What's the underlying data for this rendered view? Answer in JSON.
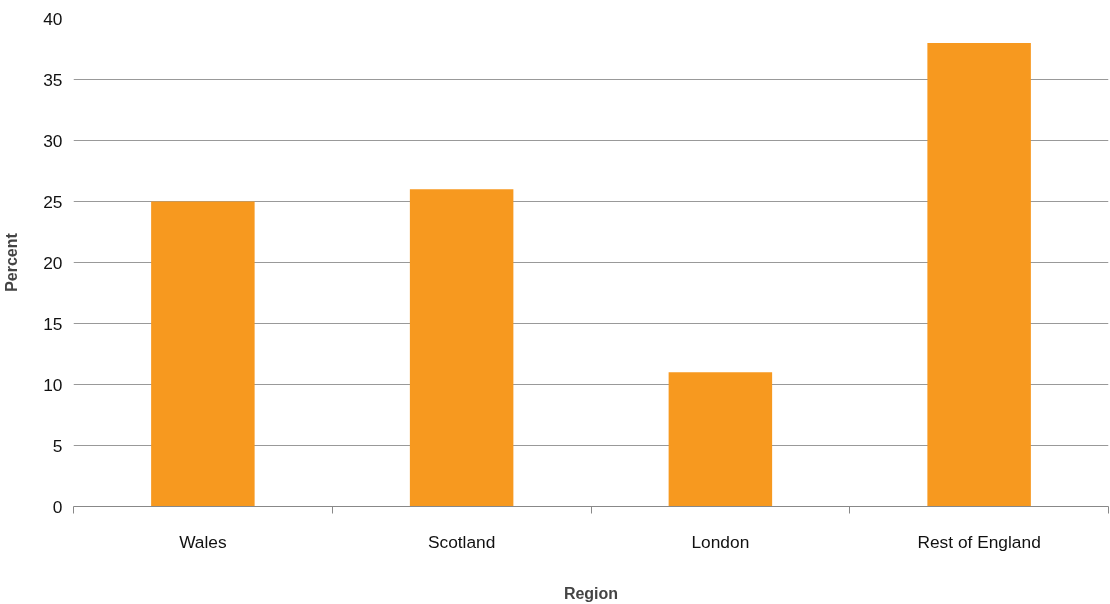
{
  "chart_data": {
    "type": "bar",
    "xlabel": "Region",
    "ylabel": "Percent",
    "categories": [
      "Wales",
      "Scotland",
      "London",
      "Rest of England"
    ],
    "values": [
      25,
      26,
      11,
      38
    ],
    "color": "#f7991f",
    "ylim": [
      0,
      40
    ],
    "yticks": [
      0,
      5,
      10,
      15,
      20,
      25,
      30,
      35,
      40
    ],
    "grid": "y"
  }
}
